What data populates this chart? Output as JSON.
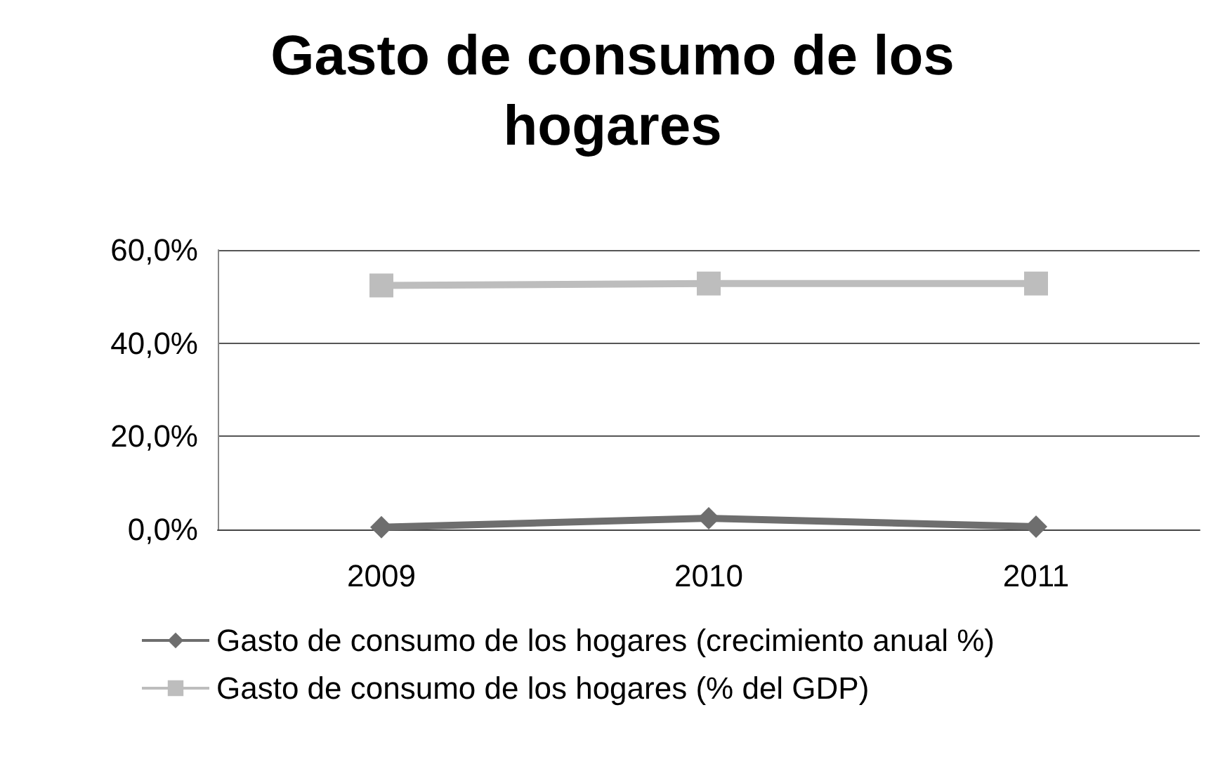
{
  "chart_data": {
    "type": "line",
    "title": "Gasto de consumo de los\nhogares",
    "categories": [
      "2009",
      "2010",
      "2011"
    ],
    "series": [
      {
        "name": "Gasto de consumo de los hogares (crecimiento anual %)",
        "color": "#6e6e6e",
        "marker": "diamond",
        "values": [
          0.5,
          2.4,
          0.6
        ]
      },
      {
        "name": "Gasto de consumo de los hogares (% del GDP)",
        "color": "#bdbdbd",
        "marker": "square",
        "values": [
          52.4,
          52.8,
          52.8
        ]
      }
    ],
    "ylim": [
      0,
      60
    ],
    "yticks": [
      {
        "value": 0,
        "label": "0,0%"
      },
      {
        "value": 20,
        "label": "20,0%"
      },
      {
        "value": 40,
        "label": "40,0%"
      },
      {
        "value": 60,
        "label": "60,0%"
      }
    ],
    "grid": "y",
    "legend": "bottom"
  }
}
